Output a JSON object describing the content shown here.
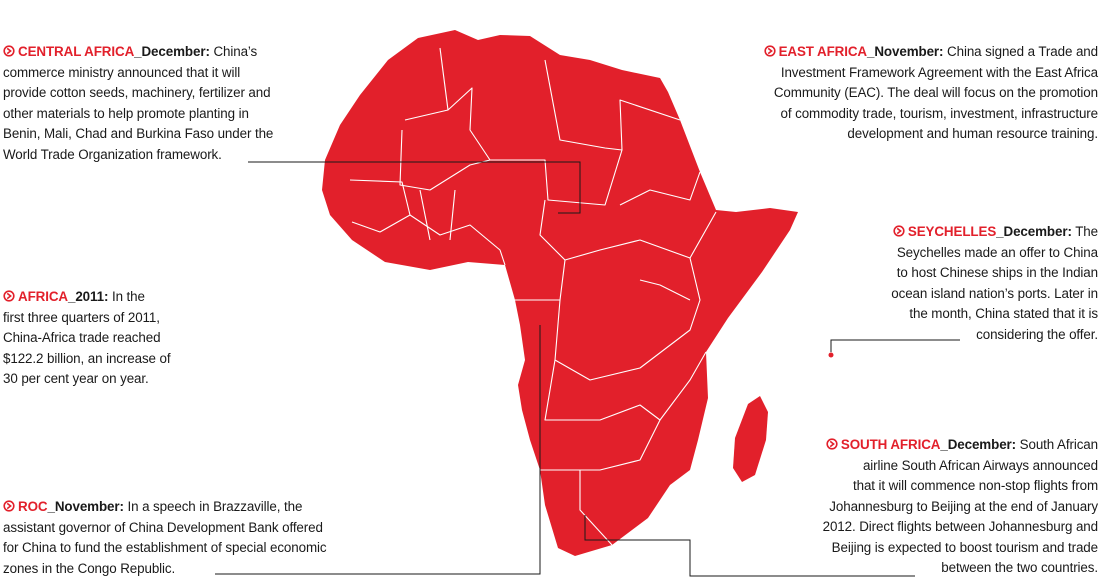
{
  "colors": {
    "accent": "#e2202b",
    "text": "#1a1a1a",
    "border": "#ffffff"
  },
  "notes": {
    "central_africa": {
      "region": "CENTRAL AFRICA",
      "date": "_December:",
      "lines": [
        "China’s",
        "commerce ministry announced that it will",
        "provide cotton seeds, machinery, fertilizer and",
        "other materials to help promote planting in",
        "Benin, Mali, Chad and Burkina Faso under the",
        "World Trade Organization framework."
      ]
    },
    "africa": {
      "region": "AFRICA",
      "date": "_2011:",
      "lines": [
        "In the",
        "first three quarters of 2011,",
        "China-Africa trade reached",
        "$122.2 billion, an increase of",
        "30 per cent year on year."
      ]
    },
    "roc": {
      "region": "ROC",
      "date": "_November:",
      "lines": [
        "In a speech in Brazzaville, the",
        "assistant governor of China Development Bank offered",
        "for China to fund the establishment of special economic",
        "zones in the Congo Republic."
      ]
    },
    "east_africa": {
      "region": "EAST AFRICA",
      "date": "_November:",
      "lines": [
        "China signed a Trade and",
        "Investment Framework Agreement with the East Africa",
        "Community (EAC). The deal will focus on the promotion",
        "of commodity trade, tourism, investment, infrastructure",
        "development and human resource training."
      ]
    },
    "seychelles": {
      "region": "SEYCHELLES",
      "date": "_December:",
      "lines": [
        "The",
        "Seychelles made an offer to China",
        "to host Chinese ships in the Indian",
        "ocean island nation’s ports. Later in",
        "the month, China stated that it is",
        "considering the offer."
      ]
    },
    "south_africa": {
      "region": "SOUTH AFRICA",
      "date": "_December:",
      "lines": [
        "South African",
        "airline South African Airways announced",
        "that it will commence non-stop flights from",
        "Johannesburg to Beijing at the end of January",
        "2012. Direct flights between Johannesburg and",
        "Beijing is expected to boost tourism and trade",
        "between the two countries."
      ]
    }
  },
  "icon": "circled-arrow-icon"
}
